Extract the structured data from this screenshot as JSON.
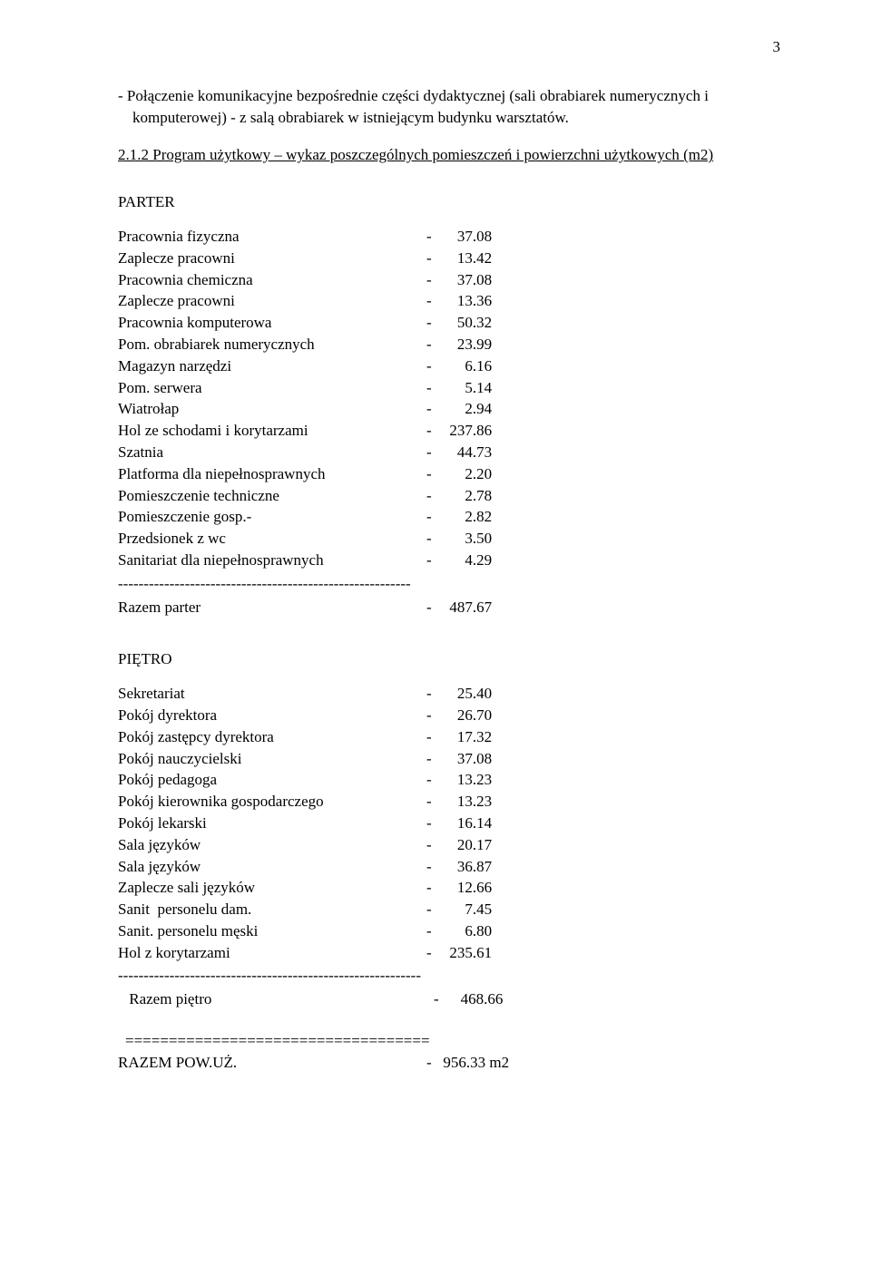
{
  "page_number": "3",
  "intro_bullet": "-  Połączenie komunikacyjne  bezpośrednie części dydaktycznej (sali obrabiarek numerycznych i komputerowej)  - z salą obrabiarek w istniejącym budynku warsztatów.",
  "section_title": "2.1.2  Program użytkowy – wykaz poszczególnych pomieszczeń i powierzchni  użytkowych  (m2)",
  "parter_heading": "PARTER",
  "pietro_heading": "PIĘTRO",
  "parter": {
    "rows": [
      {
        "label": "Pracownia fizyczna",
        "value": "37.08"
      },
      {
        "label": "Zaplecze pracowni",
        "value": "13.42"
      },
      {
        "label": "Pracownia chemiczna",
        "value": "37.08"
      },
      {
        "label": "Zaplecze pracowni",
        "value": "13.36"
      },
      {
        "label": "Pracownia komputerowa",
        "value": "50.32"
      },
      {
        "label": "Pom. obrabiarek numerycznych",
        "value": "23.99"
      },
      {
        "label": "Magazyn narzędzi",
        "value": "6.16"
      },
      {
        "label": "Pom. serwera",
        "value": "5.14"
      },
      {
        "label": "Wiatrołap",
        "value": "2.94"
      },
      {
        "label": "Hol ze schodami i korytarzami",
        "value": "237.86"
      },
      {
        "label": "Szatnia",
        "value": "44.73"
      },
      {
        "label": "Platforma dla niepełnosprawnych",
        "value": "2.20"
      },
      {
        "label": "Pomieszczenie techniczne",
        "value": "2.78"
      },
      {
        "label": "Pomieszczenie gosp.-",
        "value": "2.82"
      },
      {
        "label": "Przedsionek z wc",
        "value": "3.50"
      },
      {
        "label": "Sanitariat dla niepełnosprawnych",
        "value": "4.29"
      }
    ],
    "divider": "---------------------------------------------------------",
    "total_label": "Razem parter",
    "total_value": "487.67"
  },
  "pietro": {
    "rows": [
      {
        "label": "Sekretariat",
        "value": "25.40"
      },
      {
        "label": "Pokój dyrektora",
        "value": "26.70"
      },
      {
        "label": "Pokój zastępcy dyrektora",
        "value": "17.32"
      },
      {
        "label": "Pokój nauczycielski",
        "value": "37.08"
      },
      {
        "label": "Pokój pedagoga",
        "value": "13.23"
      },
      {
        "label": "Pokój kierownika gospodarczego",
        "value": "13.23"
      },
      {
        "label": "Pokój lekarski",
        "value": "16.14"
      },
      {
        "label": "Sala języków",
        "value": "20.17"
      },
      {
        "label": "Sala języków",
        "value": "36.87"
      },
      {
        "label": "Zaplecze sali języków",
        "value": "12.66"
      },
      {
        "label": "Sanit  personelu dam.",
        "value": "7.45"
      },
      {
        "label": "Sanit. personelu męski",
        "value": "6.80"
      },
      {
        "label": "Hol z korytarzami",
        "value": "235.61"
      }
    ],
    "divider": "-----------------------------------------------------------",
    "total_label": " Razem piętro",
    "total_value": "468.66"
  },
  "eq_divider": "===================================",
  "grand_total_label": "RAZEM POW.UŻ.",
  "grand_total_value": "956.33 m2"
}
